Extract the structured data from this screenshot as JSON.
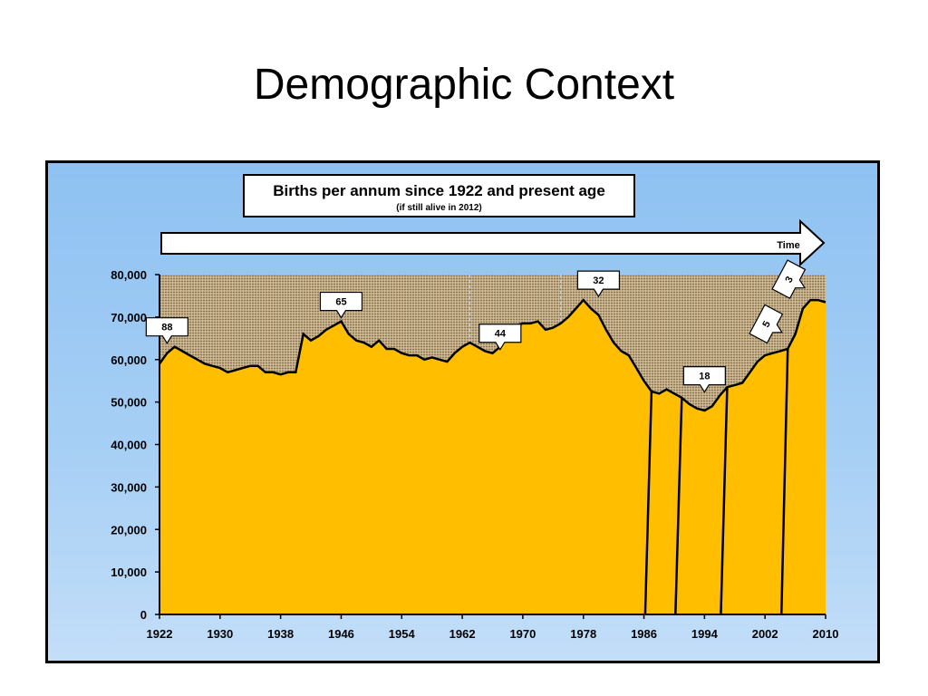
{
  "slide": {
    "title": "Demographic Context"
  },
  "chart_data": {
    "type": "area",
    "title": "Births per annum since 1922 and present age",
    "subtitle": "(if still alive in 2012)",
    "arrow_label": "Time",
    "xlabel": "",
    "ylabel": "",
    "xlim": [
      1922,
      2010
    ],
    "ylim": [
      0,
      80000
    ],
    "x_ticks": [
      "1922",
      "1930",
      "1938",
      "1946",
      "1954",
      "1962",
      "1970",
      "1978",
      "1986",
      "1994",
      "2002",
      "2010"
    ],
    "y_ticks": [
      "0",
      "10,000",
      "20,000",
      "30,000",
      "40,000",
      "50,000",
      "60,000",
      "70,000",
      "80,000"
    ],
    "x": [
      1922,
      1923,
      1924,
      1925,
      1926,
      1927,
      1928,
      1929,
      1930,
      1931,
      1932,
      1933,
      1934,
      1935,
      1936,
      1937,
      1938,
      1939,
      1940,
      1941,
      1942,
      1943,
      1944,
      1945,
      1946,
      1947,
      1948,
      1949,
      1950,
      1951,
      1952,
      1953,
      1954,
      1955,
      1956,
      1957,
      1958,
      1959,
      1960,
      1961,
      1962,
      1963,
      1964,
      1965,
      1966,
      1967,
      1968,
      1969,
      1970,
      1971,
      1972,
      1973,
      1974,
      1975,
      1976,
      1977,
      1978,
      1979,
      1980,
      1981,
      1982,
      1983,
      1984,
      1985,
      1986,
      1987,
      1988,
      1989,
      1990,
      1991,
      1992,
      1993,
      1994,
      1995,
      1996,
      1997,
      1998,
      1999,
      2000,
      2001,
      2002,
      2003,
      2004,
      2005,
      2006,
      2007,
      2008,
      2009,
      2010
    ],
    "y": [
      59000,
      61500,
      63000,
      62000,
      61000,
      60000,
      59000,
      58500,
      58000,
      57000,
      57500,
      58000,
      58500,
      58500,
      57000,
      57000,
      56500,
      57000,
      57000,
      66000,
      64500,
      65500,
      67000,
      68000,
      69000,
      66000,
      64500,
      64000,
      63000,
      64500,
      62500,
      62500,
      61500,
      61000,
      61000,
      60000,
      60500,
      60000,
      59500,
      61500,
      63000,
      64000,
      63000,
      62000,
      61500,
      63000,
      65500,
      68000,
      68500,
      68500,
      69000,
      67000,
      67500,
      68500,
      70000,
      72000,
      74000,
      72000,
      70500,
      67000,
      64000,
      62000,
      61000,
      58000,
      55000,
      52500,
      52000,
      53000,
      52000,
      51000,
      49500,
      48500,
      48000,
      49000,
      51500,
      53500,
      54000,
      54500,
      57000,
      59500,
      61000,
      61500,
      62000,
      62500,
      66000,
      72000,
      74000,
      74000,
      73500
    ],
    "age_groups": [
      {
        "from": 1922,
        "to": 1987,
        "label": "88",
        "callout_year": 1923
      },
      {
        "from": 1987,
        "to": 1991,
        "label": "",
        "callout_year": null
      },
      {
        "from": 1991,
        "to": 1997,
        "label": "18",
        "callout_year": 1994
      },
      {
        "from": 1997,
        "to": 2005,
        "label": "5",
        "callout_year": 2005
      },
      {
        "from": 2005,
        "to": 2010,
        "label": "3",
        "callout_year": 2009
      }
    ],
    "callouts": [
      {
        "label": "88",
        "year": 1923,
        "value": 63000
      },
      {
        "label": "65",
        "year": 1946,
        "value": 69000
      },
      {
        "label": "44",
        "year": 1967,
        "value": 61500
      },
      {
        "label": "32",
        "year": 1980,
        "value": 74000
      },
      {
        "label": "18",
        "year": 1994,
        "value": 51500
      },
      {
        "label": "5",
        "year": 2005,
        "value": 62000
      },
      {
        "label": "3",
        "year": 2008,
        "value": 72500
      }
    ],
    "grid": false,
    "colors": {
      "fill": "#ffbf00",
      "background": "#bea882",
      "panel": "#9fc9f3",
      "line": "#000000"
    }
  }
}
